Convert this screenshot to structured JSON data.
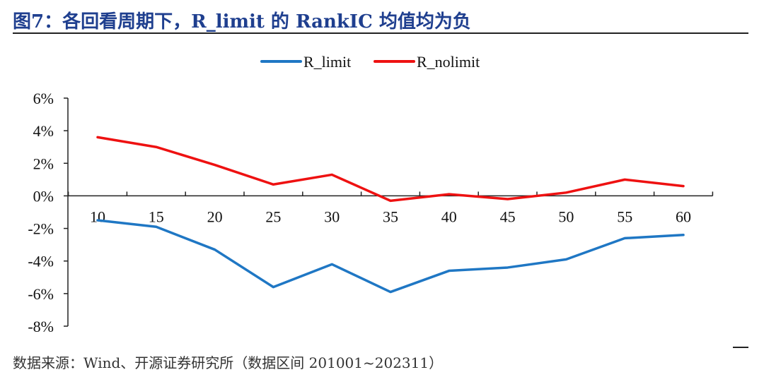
{
  "figure": {
    "title": "图7：各回看周期下，R_limit 的 RankIC 均值均为负",
    "source": "数据来源：Wind、开源证券研究所（数据区间 201001~202311）"
  },
  "chart_data": {
    "type": "line",
    "title": "",
    "xlabel": "",
    "ylabel": "",
    "x": [
      10,
      15,
      20,
      25,
      30,
      35,
      40,
      45,
      50,
      55,
      60
    ],
    "x_tick_labels": [
      "10",
      "15",
      "20",
      "25",
      "30",
      "35",
      "40",
      "45",
      "50",
      "55",
      "60"
    ],
    "y_ticks": [
      6,
      4,
      2,
      0,
      -2,
      -4,
      -6,
      -8
    ],
    "y_tick_labels": [
      "6%",
      "4%",
      "2%",
      "0%",
      "-2%",
      "-4%",
      "-6%",
      "-8%"
    ],
    "ylim": [
      -8,
      6
    ],
    "grid": false,
    "legend_position": "top-center",
    "series": [
      {
        "name": "R_limit",
        "color": "#1f77c4",
        "values": [
          -1.5,
          -1.9,
          -3.3,
          -5.6,
          -4.2,
          -5.9,
          -4.6,
          -4.4,
          -3.9,
          -2.6,
          -2.4
        ]
      },
      {
        "name": "R_nolimit",
        "color": "#ee1111",
        "values": [
          3.6,
          3.0,
          1.9,
          0.7,
          1.3,
          -0.3,
          0.1,
          -0.2,
          0.2,
          1.0,
          0.6
        ]
      }
    ]
  }
}
